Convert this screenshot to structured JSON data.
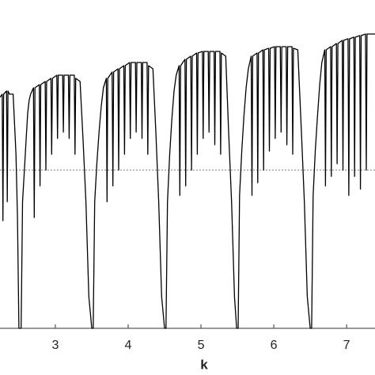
{
  "chart_data": {
    "type": "line",
    "x_label": "k",
    "x": [
      2.24,
      2.27,
      2.28,
      2.29,
      2.33,
      2.34,
      2.35,
      2.37,
      2.42,
      2.46,
      2.48,
      2.5,
      2.53,
      2.55,
      2.58,
      2.6,
      2.62,
      2.64,
      2.66,
      2.7,
      2.71,
      2.72,
      2.78,
      2.79,
      2.8,
      2.86,
      2.87,
      2.88,
      2.94,
      2.95,
      2.96,
      3.02,
      3.03,
      3.04,
      3.1,
      3.11,
      3.12,
      3.18,
      3.19,
      3.2,
      3.26,
      3.27,
      3.28,
      3.34,
      3.38,
      3.42,
      3.46,
      3.5,
      3.52,
      3.54,
      3.57,
      3.6,
      3.63,
      3.66,
      3.7,
      3.71,
      3.72,
      3.78,
      3.79,
      3.8,
      3.86,
      3.87,
      3.88,
      3.94,
      3.95,
      3.96,
      4.02,
      4.03,
      4.04,
      4.1,
      4.11,
      4.12,
      4.18,
      4.19,
      4.2,
      4.26,
      4.27,
      4.28,
      4.34,
      4.38,
      4.42,
      4.46,
      4.5,
      4.52,
      4.54,
      4.57,
      4.6,
      4.63,
      4.66,
      4.7,
      4.71,
      4.72,
      4.78,
      4.79,
      4.8,
      4.86,
      4.87,
      4.88,
      4.94,
      4.95,
      4.96,
      5.02,
      5.03,
      5.04,
      5.1,
      5.11,
      5.12,
      5.18,
      5.19,
      5.2,
      5.26,
      5.27,
      5.28,
      5.34,
      5.38,
      5.42,
      5.46,
      5.49,
      5.51,
      5.53,
      5.56,
      5.59,
      5.62,
      5.65,
      5.69,
      5.7,
      5.71,
      5.77,
      5.78,
      5.79,
      5.85,
      5.86,
      5.87,
      5.93,
      5.94,
      5.95,
      6.01,
      6.02,
      6.03,
      6.09,
      6.1,
      6.11,
      6.17,
      6.18,
      6.19,
      6.25,
      6.26,
      6.27,
      6.33,
      6.38,
      6.42,
      6.46,
      6.5,
      6.52,
      6.54,
      6.57,
      6.6,
      6.63,
      6.66,
      6.7,
      6.71,
      6.72,
      6.78,
      6.79,
      6.8,
      6.86,
      6.87,
      6.88,
      6.94,
      6.95,
      6.96,
      7.02,
      7.03,
      7.04,
      7.1,
      7.11,
      7.12,
      7.18,
      7.19,
      7.2,
      7.26,
      7.27,
      7.28,
      7.34,
      7.39
    ],
    "series": [
      {
        "color": "#000000",
        "values": [
          0.73,
          0.74,
          0.34,
          0.74,
          0.75,
          0.4,
          0.75,
          0.74,
          0.74,
          0.55,
          0.35,
          0,
          0,
          0.4,
          0.52,
          0.6,
          0.68,
          0.72,
          0.74,
          0.76,
          0.35,
          0.76,
          0.77,
          0.45,
          0.77,
          0.78,
          0.5,
          0.78,
          0.79,
          0.55,
          0.79,
          0.8,
          0.6,
          0.8,
          0.8,
          0.62,
          0.8,
          0.8,
          0.6,
          0.8,
          0.8,
          0.55,
          0.79,
          0.78,
          0.6,
          0.4,
          0.1,
          0,
          0,
          0.4,
          0.52,
          0.62,
          0.7,
          0.76,
          0.79,
          0.4,
          0.79,
          0.81,
          0.45,
          0.81,
          0.82,
          0.5,
          0.82,
          0.83,
          0.55,
          0.83,
          0.84,
          0.6,
          0.84,
          0.84,
          0.62,
          0.84,
          0.84,
          0.6,
          0.84,
          0.84,
          0.55,
          0.83,
          0.82,
          0.62,
          0.4,
          0.1,
          0,
          0,
          0.4,
          0.55,
          0.66,
          0.75,
          0.8,
          0.83,
          0.42,
          0.83,
          0.85,
          0.45,
          0.85,
          0.86,
          0.5,
          0.86,
          0.87,
          0.55,
          0.87,
          0.875,
          0.6,
          0.875,
          0.875,
          0.62,
          0.875,
          0.875,
          0.58,
          0.875,
          0.875,
          0.55,
          0.87,
          0.86,
          0.62,
          0.4,
          0.1,
          0,
          0,
          0.42,
          0.56,
          0.67,
          0.76,
          0.82,
          0.86,
          0.42,
          0.86,
          0.87,
          0.46,
          0.87,
          0.88,
          0.5,
          0.88,
          0.885,
          0.56,
          0.885,
          0.89,
          0.6,
          0.89,
          0.89,
          0.62,
          0.89,
          0.89,
          0.58,
          0.89,
          0.89,
          0.55,
          0.885,
          0.88,
          0.62,
          0.4,
          0.1,
          0,
          0,
          0.42,
          0.56,
          0.67,
          0.77,
          0.84,
          0.88,
          0.45,
          0.88,
          0.89,
          0.48,
          0.89,
          0.9,
          0.52,
          0.9,
          0.91,
          0.5,
          0.91,
          0.915,
          0.42,
          0.915,
          0.92,
          0.48,
          0.92,
          0.925,
          0.44,
          0.925,
          0.93,
          0.5,
          0.93,
          0.93,
          0.93
        ]
      }
    ],
    "xlim": [
      2.24,
      7.39
    ],
    "ylim": [
      0,
      1
    ],
    "xticks": [
      3,
      4,
      5,
      6,
      7
    ],
    "hline": 0.5
  }
}
